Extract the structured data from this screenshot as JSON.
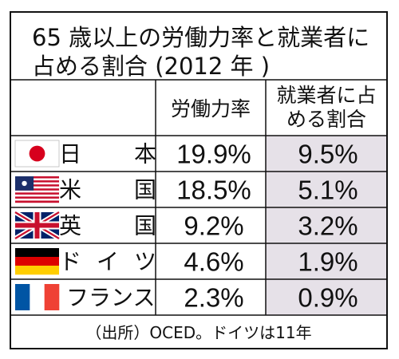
{
  "chart_data": {
    "type": "table",
    "title_lines": [
      "65 歳以上の労働力率と就業者に",
      "占める割合 (2012 年 )"
    ],
    "columns": [
      "労働力率",
      "就業者に占める割合"
    ],
    "column_header_lines": [
      [
        "労働力率"
      ],
      [
        "就業者に占",
        "める割合"
      ]
    ],
    "rows": [
      {
        "country": "日本",
        "label_chars": [
          "日",
          "本"
        ],
        "flag": "japan-flag-icon",
        "labor_force_rate": "19.9%",
        "share_of_employed": "9.5%"
      },
      {
        "country": "米国",
        "label_chars": [
          "米",
          "国"
        ],
        "flag": "us-flag-icon",
        "labor_force_rate": "18.5%",
        "share_of_employed": "5.1%"
      },
      {
        "country": "英国",
        "label_chars": [
          "英",
          "国"
        ],
        "flag": "uk-flag-icon",
        "labor_force_rate": "9.2%",
        "share_of_employed": "3.2%"
      },
      {
        "country": "ドイツ",
        "label_chars": [
          "ド",
          "イ",
          "ツ"
        ],
        "flag": "germany-flag-icon",
        "labor_force_rate": "4.6%",
        "share_of_employed": "1.9%"
      },
      {
        "country": "フランス",
        "label_chars": [
          "フランス"
        ],
        "flag": "france-flag-icon",
        "labor_force_rate": "2.3%",
        "share_of_employed": "0.9%"
      }
    ],
    "source_note": "（出所）OCED。ドイツは11年",
    "colors": {
      "shaded_column": "#e6e1e8",
      "border": "#111111",
      "background": "#ffffff"
    }
  }
}
